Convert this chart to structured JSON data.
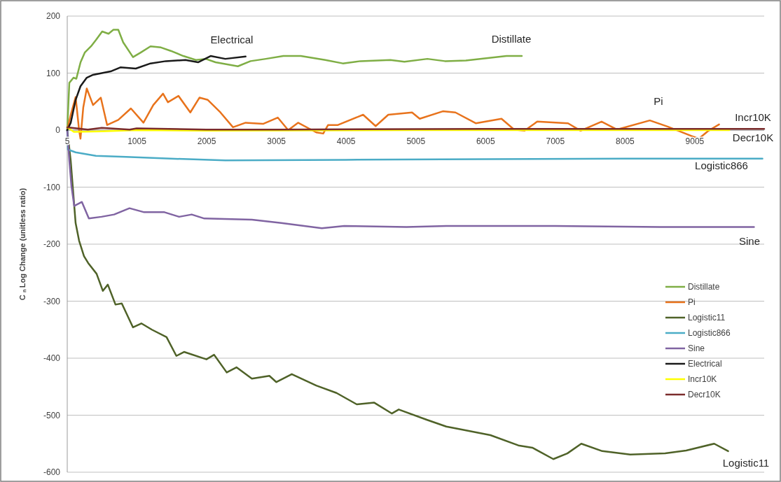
{
  "chart_data": {
    "type": "line",
    "ylabel": "C ₙ Log Change (unitless ratio)",
    "xlim": [
      5,
      10000
    ],
    "ylim": [
      -600,
      200
    ],
    "xticks": [
      5,
      1005,
      2005,
      3005,
      4005,
      5005,
      6005,
      7005,
      8005,
      9005
    ],
    "yticks": [
      -600,
      -500,
      -400,
      -300,
      -200,
      -100,
      0,
      100,
      200
    ],
    "grid": "y",
    "legend": "bottom right",
    "line_style": "solid",
    "series": [
      {
        "name": "Distillate",
        "color": "#7fae45",
        "x": [
          5,
          35,
          95,
          135,
          196,
          256,
          346,
          416,
          506,
          597,
          667,
          737,
          807,
          948,
          1058,
          1199,
          1349,
          1489,
          1670,
          1850,
          1991,
          2131,
          2452,
          2633,
          2853,
          3104,
          3355,
          3706,
          3957,
          4208,
          4639,
          4840,
          5170,
          5421,
          5722,
          6013,
          6304,
          6524
        ],
        "values": [
          0,
          83,
          92,
          90,
          119,
          136,
          147,
          158,
          173,
          169,
          176,
          176,
          154,
          128,
          136,
          147,
          145,
          139,
          130,
          123,
          125,
          119,
          112,
          121,
          125,
          130,
          130,
          123,
          117,
          121,
          123,
          120,
          125,
          121,
          122,
          126,
          130,
          130
        ]
      },
      {
        "name": "Pi",
        "color": "#e8731c",
        "x": [
          5,
          55,
          125,
          175,
          195,
          235,
          285,
          375,
          486,
          577,
          737,
          918,
          1098,
          1239,
          1379,
          1449,
          1600,
          1770,
          1901,
          2021,
          2202,
          2382,
          2563,
          2813,
          3024,
          3174,
          3315,
          3576,
          3676,
          3746,
          3887,
          4248,
          4428,
          4609,
          4950,
          5060,
          5391,
          5572,
          5863,
          6233,
          6414,
          6564,
          6745,
          7187,
          7367,
          7668,
          7888,
          8360,
          8620,
          8951,
          9062,
          9202,
          9353
        ],
        "values": [
          0,
          27,
          58,
          0,
          -15,
          40,
          73,
          44,
          57,
          9,
          18,
          38,
          13,
          44,
          64,
          49,
          60,
          31,
          57,
          53,
          31,
          5,
          13,
          11,
          22,
          0,
          13,
          -4,
          -6,
          9,
          9,
          27,
          7,
          27,
          31,
          20,
          33,
          31,
          12,
          20,
          1,
          -1,
          15,
          12,
          -1,
          15,
          1,
          17,
          6,
          -10,
          -15,
          -1,
          10
        ]
      },
      {
        "name": "Logistic11",
        "color": "#4f6228",
        "x": [
          5,
          55,
          125,
          175,
          245,
          305,
          426,
          516,
          587,
          697,
          787,
          948,
          1068,
          1219,
          1429,
          1570,
          1680,
          2001,
          2111,
          2292,
          2432,
          2653,
          2904,
          3004,
          3225,
          3576,
          3867,
          4157,
          4408,
          4659,
          4759,
          5160,
          5441,
          5572,
          6073,
          6474,
          6675,
          6976,
          7177,
          7377,
          7678,
          8079,
          8580,
          8881,
          9283,
          9483
        ],
        "values": [
          0,
          -54,
          -163,
          -194,
          -221,
          -233,
          -252,
          -282,
          -271,
          -306,
          -304,
          -346,
          -339,
          -350,
          -363,
          -396,
          -389,
          -402,
          -394,
          -425,
          -416,
          -436,
          -431,
          -442,
          -428,
          -448,
          -461,
          -481,
          -478,
          -497,
          -490,
          -508,
          -520,
          -523,
          -535,
          -553,
          -557,
          -577,
          -567,
          -550,
          -563,
          -569,
          -567,
          -562,
          -550,
          -563
        ]
      },
      {
        "name": "Logistic866",
        "color": "#4bacc6",
        "x": [
          5,
          15,
          125,
          416,
          848,
          1489,
          2272,
          4000,
          6000,
          8000,
          9975
        ],
        "values": [
          0,
          -34,
          -39,
          -45,
          -47,
          -50,
          -53,
          -52,
          -51,
          -50,
          -50
        ]
      },
      {
        "name": "Sine",
        "color": "#8064a2",
        "x": [
          5,
          35,
          65,
          105,
          215,
          315,
          496,
          677,
          898,
          1108,
          1399,
          1610,
          1790,
          1971,
          2653,
          3074,
          3656,
          3977,
          4870,
          5441,
          7000,
          8500,
          9854
        ],
        "values": [
          0,
          -54,
          -98,
          -133,
          -126,
          -155,
          -152,
          -148,
          -137,
          -144,
          -144,
          -152,
          -148,
          -155,
          -157,
          -163,
          -172,
          -168,
          -170,
          -168,
          -168,
          -170,
          -170
        ]
      },
      {
        "name": "Electrical",
        "color": "#1a1a1a",
        "x": [
          5,
          55,
          125,
          195,
          285,
          375,
          627,
          767,
          988,
          1199,
          1419,
          1700,
          1881,
          2061,
          2272,
          2563
        ],
        "values": [
          0,
          13,
          53,
          77,
          92,
          97,
          103,
          110,
          108,
          117,
          121,
          123,
          119,
          130,
          125,
          129
        ]
      },
      {
        "name": "Incr10K",
        "color": "#ffff00",
        "x": [
          5,
          100,
          500,
          1000,
          2000,
          5000,
          9500
        ],
        "values": [
          5,
          -3,
          -2,
          0,
          -1,
          0,
          0
        ]
      },
      {
        "name": "Decr10K",
        "color": "#7b2c2c",
        "x": [
          5,
          300,
          500,
          900,
          1000,
          2000,
          3000,
          6000,
          10000
        ],
        "values": [
          5,
          1,
          4,
          1,
          3,
          1,
          1,
          2,
          2
        ]
      }
    ],
    "annotations": [
      "Distillate",
      "Pi",
      "Logistic11",
      "Logistic866",
      "Sine",
      "Electrical",
      "Incr10K",
      "Decr10K"
    ]
  }
}
